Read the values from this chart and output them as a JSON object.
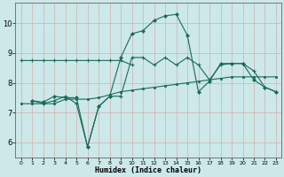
{
  "xlabel": "Humidex (Indice chaleur)",
  "background_color": "#cce8e8",
  "grid_color": "#aacccc",
  "line_color": "#1a6b5a",
  "xlim": [
    -0.5,
    23.5
  ],
  "ylim": [
    5.5,
    10.7
  ],
  "yticks": [
    6,
    7,
    8,
    9,
    10
  ],
  "xticks": [
    0,
    1,
    2,
    3,
    4,
    5,
    6,
    7,
    8,
    9,
    10,
    11,
    12,
    13,
    14,
    15,
    16,
    17,
    18,
    19,
    20,
    21,
    22,
    23
  ],
  "series1_x": [
    0,
    1,
    2,
    3,
    4,
    5,
    6,
    7,
    8,
    9,
    10
  ],
  "series1_y": [
    8.75,
    8.75,
    8.75,
    8.75,
    8.75,
    8.75,
    8.75,
    8.75,
    8.75,
    8.75,
    8.6
  ],
  "series2_x": [
    0,
    1,
    2,
    3,
    4,
    5,
    6,
    7,
    8,
    9,
    10,
    11,
    12,
    13,
    14,
    15,
    16,
    17,
    18,
    19,
    20,
    21,
    22,
    23
  ],
  "series2_y": [
    7.3,
    7.3,
    7.3,
    7.3,
    7.45,
    7.45,
    7.45,
    7.5,
    7.6,
    7.7,
    7.75,
    7.8,
    7.85,
    7.9,
    7.95,
    8.0,
    8.05,
    8.1,
    8.15,
    8.2,
    8.2,
    8.2,
    8.2,
    8.2
  ],
  "series3_x": [
    1,
    2,
    3,
    4,
    5,
    6,
    7,
    8,
    9,
    10,
    11,
    12,
    13,
    14,
    15,
    16,
    17,
    18,
    19,
    20,
    21,
    22,
    23
  ],
  "series3_y": [
    7.4,
    7.3,
    7.4,
    7.55,
    7.3,
    5.85,
    7.2,
    7.55,
    7.55,
    8.85,
    8.85,
    8.6,
    8.85,
    8.6,
    8.85,
    8.6,
    8.1,
    8.6,
    8.65,
    8.65,
    8.4,
    7.85,
    7.7
  ],
  "series4_x": [
    1,
    2,
    3,
    4,
    5,
    6,
    7,
    8,
    9,
    10,
    11,
    12,
    13,
    14,
    15,
    16,
    17,
    18,
    19,
    20,
    21,
    22,
    23
  ],
  "series4_y": [
    7.4,
    7.35,
    7.55,
    7.5,
    7.5,
    5.85,
    7.2,
    7.55,
    8.85,
    9.65,
    9.75,
    10.1,
    10.25,
    10.3,
    9.6,
    7.7,
    8.05,
    8.65,
    8.65,
    8.65,
    8.1,
    7.85,
    7.7
  ]
}
